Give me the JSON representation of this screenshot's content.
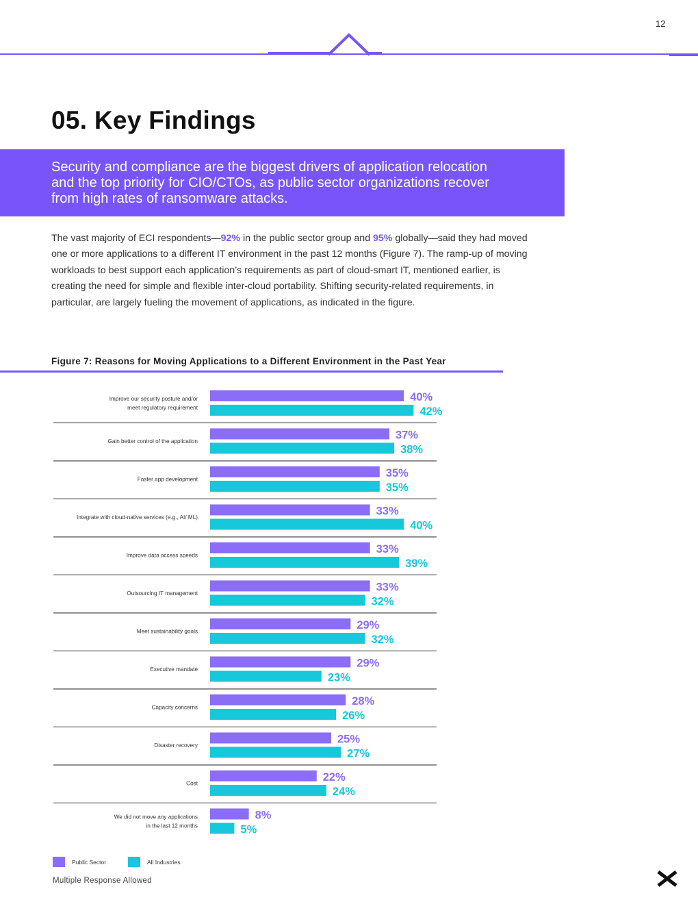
{
  "page": {
    "number": "12"
  },
  "section": {
    "title": "05. Key Findings"
  },
  "banner": {
    "text": "Security and compliance are the biggest drivers of application relocation and the top priority for CIO/CTOs, as public sector organizations recover from high rates of ransomware attacks."
  },
  "body": {
    "part1": "The vast majority of ECI respondents—",
    "stat1": "92%",
    "part2": " in the public sector group and ",
    "stat2": "95%",
    "part3": " globally—said they had moved one or more applications to a different IT environment in the past 12 months (Figure 7). The ramp-up of moving workloads to best support each application’s requirements as part of cloud-smart IT, mentioned earlier, is creating the need for simple and flexible inter-cloud portability. Shifting security-related requirements, in particular, are largely fueling the movement of applications, as indicated in the figure."
  },
  "figure": {
    "title": "Figure 7: Reasons for Moving Applications to a Different Environment in the Past Year"
  },
  "colors": {
    "accent": "#7855fa",
    "public_sector": "#8c6df7",
    "all_industries": "#16c8d9"
  },
  "chart_data": {
    "type": "bar",
    "orientation": "horizontal",
    "title": "Figure 7: Reasons for Moving Applications to a Different Environment in the Past Year",
    "unit": "%",
    "categories": [
      [
        "Improve our security posture and/or",
        "meet regulatory requirement"
      ],
      [
        "Gain better control of the application"
      ],
      [
        "Faster app development"
      ],
      [
        "Integrate with cloud-native services (e.g., AI/ ML)"
      ],
      [
        "Improve data access speeds"
      ],
      [
        "Outsourcing IT management"
      ],
      [
        "Meet sustainability goals"
      ],
      [
        "Executive mandate"
      ],
      [
        "Capacity concerns"
      ],
      [
        "Disaster recovery"
      ],
      [
        "Cost"
      ],
      [
        "We did not move any applications",
        "in the last 12 months"
      ]
    ],
    "series": [
      {
        "name": "Public Sector",
        "values": [
          40,
          37,
          35,
          33,
          33,
          33,
          29,
          29,
          28,
          25,
          22,
          8
        ]
      },
      {
        "name": "All Industries",
        "values": [
          42,
          38,
          35,
          40,
          39,
          32,
          32,
          23,
          26,
          27,
          24,
          5
        ]
      }
    ],
    "legend": "bottom-left",
    "note": "Multiple Response Allowed"
  }
}
